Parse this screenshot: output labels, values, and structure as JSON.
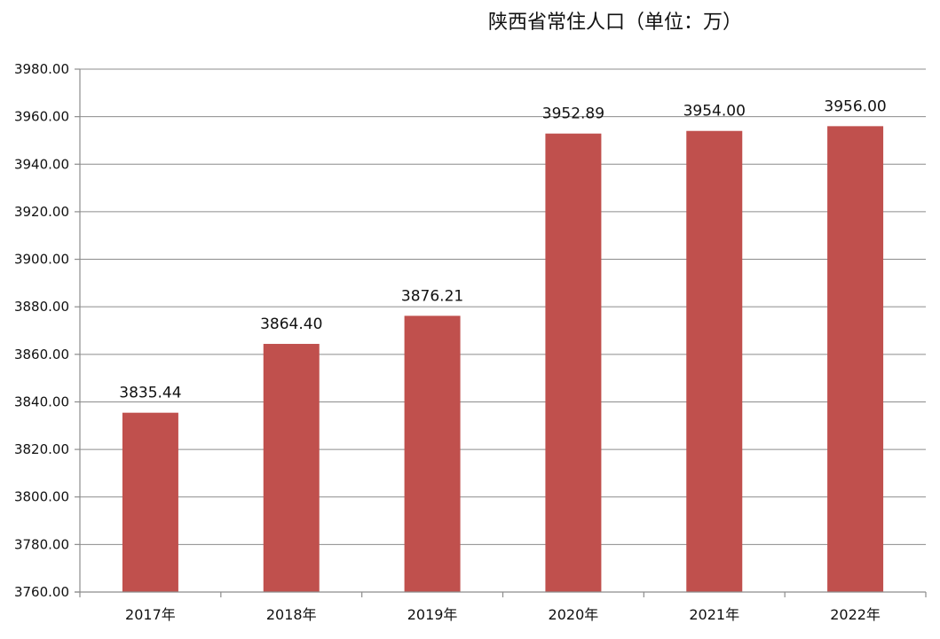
{
  "chart_data": {
    "type": "bar",
    "title": "陕西省常住人口（单位：万）",
    "categories": [
      "2017年",
      "2018年",
      "2019年",
      "2020年",
      "2021年",
      "2022年"
    ],
    "values": [
      3835.44,
      3864.4,
      3876.21,
      3952.89,
      3954.0,
      3956.0
    ],
    "data_labels": [
      "3835.44",
      "3864.40",
      "3876.21",
      "3952.89",
      "3954.00",
      "3956.00"
    ],
    "ylim": [
      3760,
      3980
    ],
    "ystep": 20,
    "ytick_labels": [
      "3760.00",
      "3780.00",
      "3800.00",
      "3820.00",
      "3840.00",
      "3860.00",
      "3880.00",
      "3900.00",
      "3920.00",
      "3940.00",
      "3960.00",
      "3980.00"
    ],
    "grid": true,
    "legend": "none",
    "bar_color": "#c0504d"
  }
}
